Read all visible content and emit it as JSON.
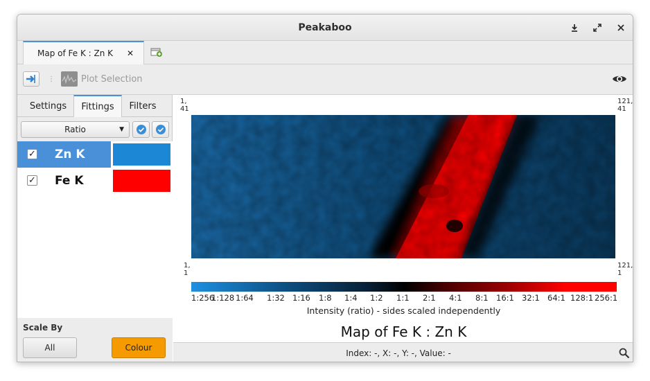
{
  "window": {
    "title": "Peakaboo"
  },
  "tabs": [
    {
      "label": "Map of Fe K : Zn K",
      "close": "✕"
    }
  ],
  "toolbar": {
    "plot_selection_label": "Plot Selection"
  },
  "left_panel": {
    "subtabs": [
      "Settings",
      "Fittings",
      "Filters"
    ],
    "active_subtab": "Fittings",
    "mode_select": "Ratio",
    "fittings": [
      {
        "label": "Zn K",
        "checked": true,
        "selected": true,
        "color": "#1c87d4"
      },
      {
        "label": "Fe K",
        "checked": true,
        "selected": false,
        "color": "#ff0000"
      }
    ],
    "scale_by": {
      "label": "Scale By",
      "options": [
        "All",
        "Colour"
      ],
      "active": "Colour"
    }
  },
  "map": {
    "corners": {
      "top_left": [
        "1,",
        "41"
      ],
      "top_right": [
        "121,",
        "41"
      ],
      "bottom_left": [
        "1,",
        "1"
      ],
      "bottom_right": [
        "121,",
        "1"
      ]
    },
    "scale_labels": [
      "1:256",
      "1:128",
      "1:64",
      "1:32",
      "1:16",
      "1:8",
      "1:4",
      "1:2",
      "1:1",
      "2:1",
      "4:1",
      "8:1",
      "16:1",
      "32:1",
      "64:1",
      "128:1",
      "256:1"
    ],
    "intensity_label": "Intensity (ratio) - sides scaled independently",
    "title": "Map of Fe K : Zn K"
  },
  "status": {
    "text": "Index: -, X: -, Y: -, Value: -"
  },
  "colors": {
    "accent": "#4a90d9",
    "colour_button": "#f59a00",
    "zn": "#1c87d4",
    "fe": "#ff0000"
  }
}
